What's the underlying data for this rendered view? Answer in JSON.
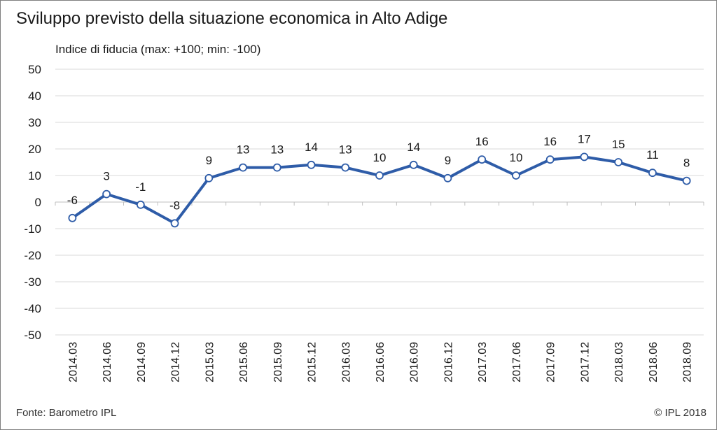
{
  "chart_data": {
    "type": "line",
    "title": "Sviluppo previsto della situazione economica in Alto Adige",
    "subtitle": "Indice di fiducia (max: +100; min: -100)",
    "xlabel": "",
    "ylabel": "",
    "categories": [
      "2014.03",
      "2014.06",
      "2014.09",
      "2014.12",
      "2015.03",
      "2015.06",
      "2015.09",
      "2015.12",
      "2016.03",
      "2016.06",
      "2016.09",
      "2016.12",
      "2017.03",
      "2017.06",
      "2017.09",
      "2017.12",
      "2018.03",
      "2018.06",
      "2018.09"
    ],
    "series": [
      {
        "values": [
          -6,
          3,
          -1,
          -8,
          9,
          13,
          13,
          14,
          13,
          10,
          14,
          9,
          16,
          10,
          16,
          17,
          15,
          11,
          8
        ],
        "color": "#2e5ca8"
      }
    ],
    "ylim": [
      -50,
      50
    ],
    "yticks": [
      50,
      40,
      30,
      20,
      10,
      0,
      -10,
      -20,
      -30,
      -40,
      -50
    ],
    "grid": true,
    "data_labels": true,
    "legend": "none"
  },
  "footer": {
    "source": "Fonte: Barometro IPL",
    "copyright": "© IPL 2018"
  },
  "colors": {
    "line": "#2e5ca8",
    "grid": "#d9d9d9",
    "marker_fill": "#ffffff"
  }
}
